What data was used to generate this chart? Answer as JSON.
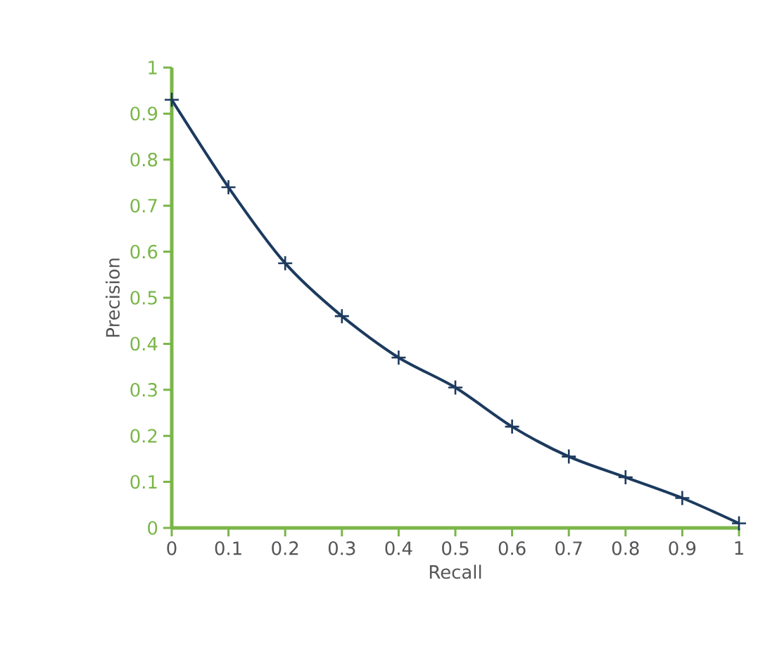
{
  "chart_data": {
    "type": "line",
    "xlabel": "Recall",
    "ylabel": "Precision",
    "x": [
      0,
      0.1,
      0.2,
      0.3,
      0.4,
      0.5,
      0.6,
      0.7,
      0.8,
      0.9,
      1
    ],
    "series": [
      {
        "color": "#1c3a5e",
        "values": [
          0.93,
          0.74,
          0.575,
          0.46,
          0.37,
          0.305,
          0.22,
          0.155,
          0.11,
          0.065,
          0.01
        ]
      }
    ],
    "xlim": [
      0,
      1
    ],
    "ylim": [
      0,
      1
    ],
    "xticks": [
      0,
      0.1,
      0.2,
      0.3,
      0.4,
      0.5,
      0.6,
      0.7,
      0.8,
      0.9,
      1
    ],
    "yticks": [
      0,
      0.1,
      0.2,
      0.3,
      0.4,
      0.5,
      0.6,
      0.7,
      0.8,
      0.9,
      1
    ],
    "marker": "cross",
    "grid": false
  }
}
